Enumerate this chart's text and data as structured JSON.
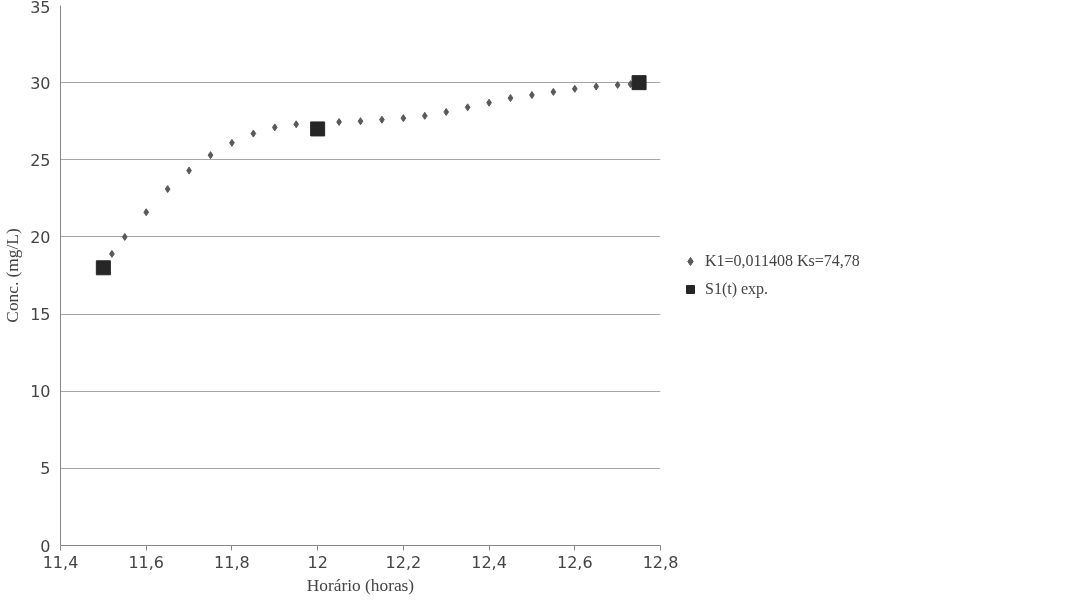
{
  "chart_data": {
    "type": "scatter",
    "xlabel": "Horário (horas)",
    "ylabel": "Conc. (mg/L)",
    "xlim": [
      11.4,
      12.8
    ],
    "xticks": [
      {
        "value": 11.4,
        "label": "11,4"
      },
      {
        "value": 11.6,
        "label": "11,6"
      },
      {
        "value": 11.8,
        "label": "11,8"
      },
      {
        "value": 12,
        "label": "12"
      },
      {
        "value": 12.2,
        "label": "12,2"
      },
      {
        "value": 12.4,
        "label": "12,4"
      },
      {
        "value": 12.6,
        "label": "12,6"
      },
      {
        "value": 12.8,
        "label": "12,8"
      }
    ],
    "ylim": [
      0,
      35
    ],
    "yticks": [
      0,
      5,
      10,
      15,
      20,
      25,
      30,
      35
    ],
    "grid": "y",
    "legend": "right",
    "series": [
      {
        "name": "K1=0,011408 Ks=74,78",
        "color": "#595959",
        "marker": "diamond",
        "x": [
          11.52,
          11.55,
          11.6,
          11.65,
          11.7,
          11.75,
          11.8,
          11.85,
          11.9,
          11.95,
          12.05,
          12.1,
          12.15,
          12.2,
          12.25,
          12.3,
          12.35,
          12.4,
          12.45,
          12.5,
          12.55,
          12.6,
          12.65,
          12.7,
          12.73
        ],
        "values": [
          18.9,
          20.0,
          21.6,
          23.1,
          24.3,
          25.3,
          26.1,
          26.7,
          27.1,
          27.3,
          27.45,
          27.5,
          27.6,
          27.7,
          27.85,
          28.1,
          28.4,
          28.7,
          29.0,
          29.2,
          29.4,
          29.6,
          29.75,
          29.85,
          29.9
        ]
      },
      {
        "name": "S1(t) exp.",
        "color": "#262626",
        "marker": "square",
        "x": [
          11.5,
          12.0,
          12.75
        ],
        "values": [
          18,
          27,
          30
        ]
      }
    ]
  }
}
